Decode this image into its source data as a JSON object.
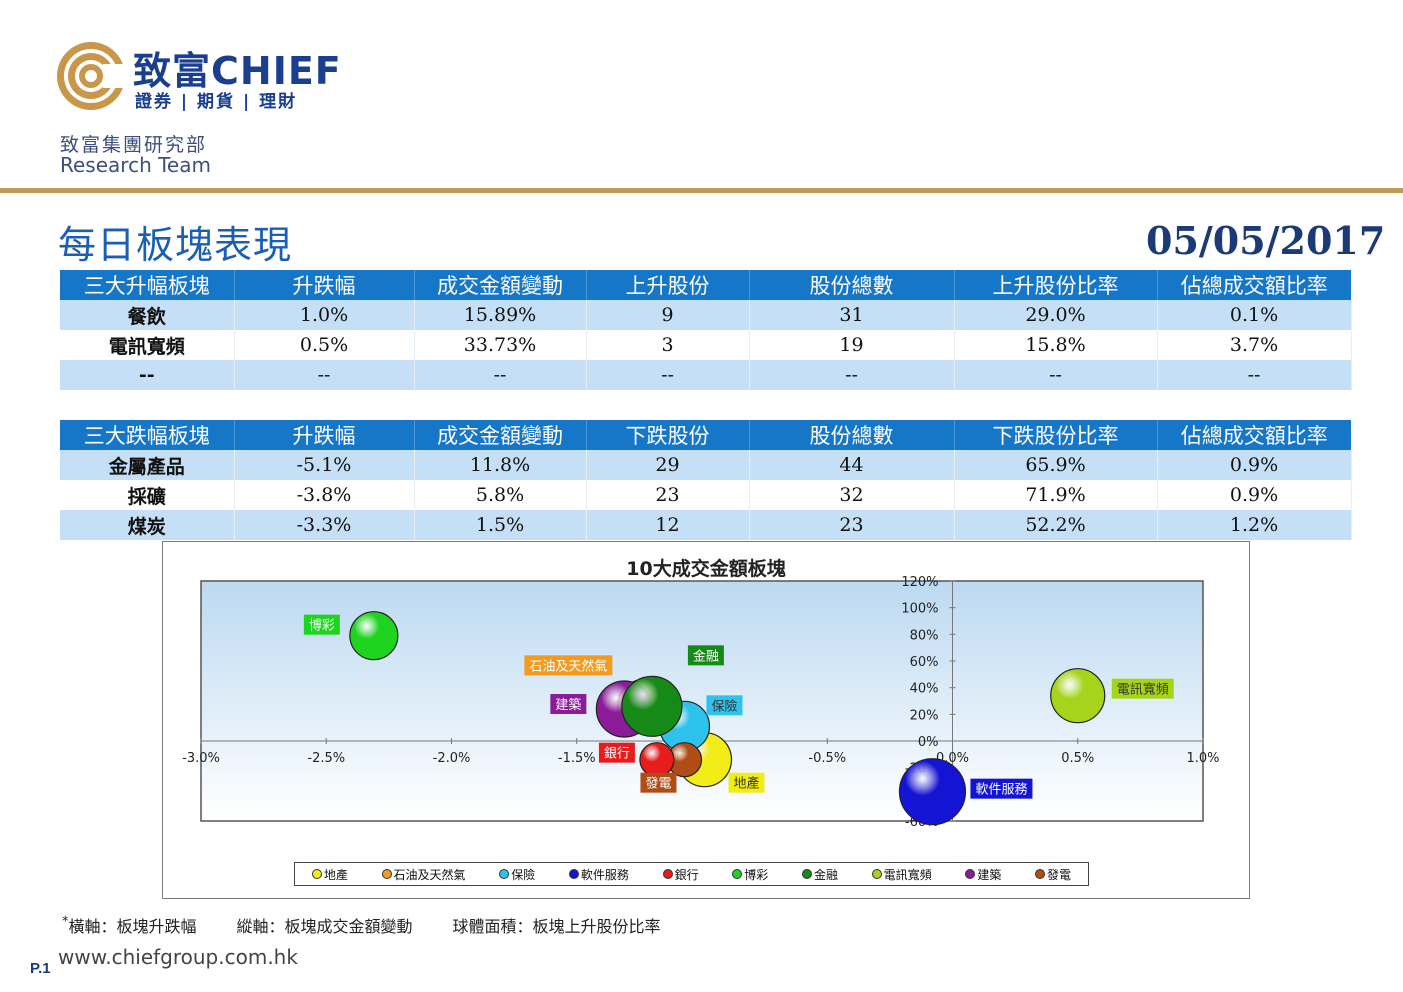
{
  "header": {
    "brand_cn": "致富CHIEF",
    "brand_sub": "證券 | 期貨 | 理財",
    "dept_cn": "致富集團研究部",
    "dept_en": "Research Team"
  },
  "title": "每日板塊表現",
  "date": "05/05/2017",
  "top_table": {
    "headers": [
      "三大升幅板塊",
      "升跌幅",
      "成交金額變動",
      "上升股份",
      "股份總數",
      "上升股份比率",
      "佔總成交額比率"
    ],
    "rows": [
      [
        "餐飲",
        "1.0%",
        "15.89%",
        "9",
        "31",
        "29.0%",
        "0.1%"
      ],
      [
        "電訊寬頻",
        "0.5%",
        "33.73%",
        "3",
        "19",
        "15.8%",
        "3.7%"
      ],
      [
        "--",
        "--",
        "--",
        "--",
        "--",
        "--",
        "--"
      ]
    ]
  },
  "bottom_table": {
    "headers": [
      "三大跌幅板塊",
      "升跌幅",
      "成交金額變動",
      "下跌股份",
      "股份總數",
      "下跌股份比率",
      "佔總成交額比率"
    ],
    "rows": [
      [
        "金屬產品",
        "-5.1%",
        "11.8%",
        "29",
        "44",
        "65.9%",
        "0.9%"
      ],
      [
        "採礦",
        "-3.8%",
        "5.8%",
        "23",
        "32",
        "71.9%",
        "0.9%"
      ],
      [
        "煤炭",
        "-3.3%",
        "1.5%",
        "12",
        "23",
        "52.2%",
        "1.2%"
      ]
    ]
  },
  "chart_data": {
    "type": "scatter",
    "title": "10大成交金額板塊",
    "xlim": [
      -0.03,
      0.01
    ],
    "ylim": [
      -0.6,
      1.2
    ],
    "x_ticks": [
      "-3.0%",
      "-2.5%",
      "-2.0%",
      "-1.5%",
      "-1.0%",
      "-0.5%",
      "0.0%",
      "0.5%",
      "1.0%"
    ],
    "y_ticks": [
      "-60%",
      "-40%",
      "-20%",
      "0%",
      "20%",
      "40%",
      "60%",
      "80%",
      "100%",
      "120%"
    ],
    "series": [
      {
        "name": "地產",
        "x": -0.0099,
        "y": -0.14,
        "color": "#f2ec17"
      },
      {
        "name": "石油及天然氣",
        "x": -0.0123,
        "y": 0.26,
        "color": "#f39b1f"
      },
      {
        "name": "保險",
        "x": -0.0107,
        "y": 0.11,
        "color": "#2ec3ec"
      },
      {
        "name": "軟件服務",
        "x": -0.0008,
        "y": -0.38,
        "color": "#1414d4"
      },
      {
        "name": "銀行",
        "x": -0.0118,
        "y": -0.14,
        "color": "#e81c1c"
      },
      {
        "name": "博彩",
        "x": -0.0231,
        "y": 0.79,
        "color": "#1fd41f"
      },
      {
        "name": "金融",
        "x": -0.012,
        "y": 0.26,
        "color": "#168a16"
      },
      {
        "name": "電訊寬頻",
        "x": 0.005,
        "y": 0.34,
        "color": "#a5d41a"
      },
      {
        "name": "建築",
        "x": -0.0131,
        "y": 0.24,
        "color": "#8a1c9a"
      },
      {
        "name": "發電",
        "x": -0.0107,
        "y": -0.14,
        "color": "#b04c16"
      }
    ]
  },
  "legend": [
    "地產",
    "石油及天然氣",
    "保險",
    "軟件服務",
    "銀行",
    "博彩",
    "金融",
    "電訊寬頻",
    "建築",
    "發電"
  ],
  "footnote": {
    "marker": "*",
    "x_axis": "橫軸：板塊升跌幅",
    "y_axis": "縱軸：板塊成交金額變動",
    "size": "球體面積：板塊上升股份比率"
  },
  "page_no": "P.1",
  "website": "www.chiefgroup.com.hk"
}
